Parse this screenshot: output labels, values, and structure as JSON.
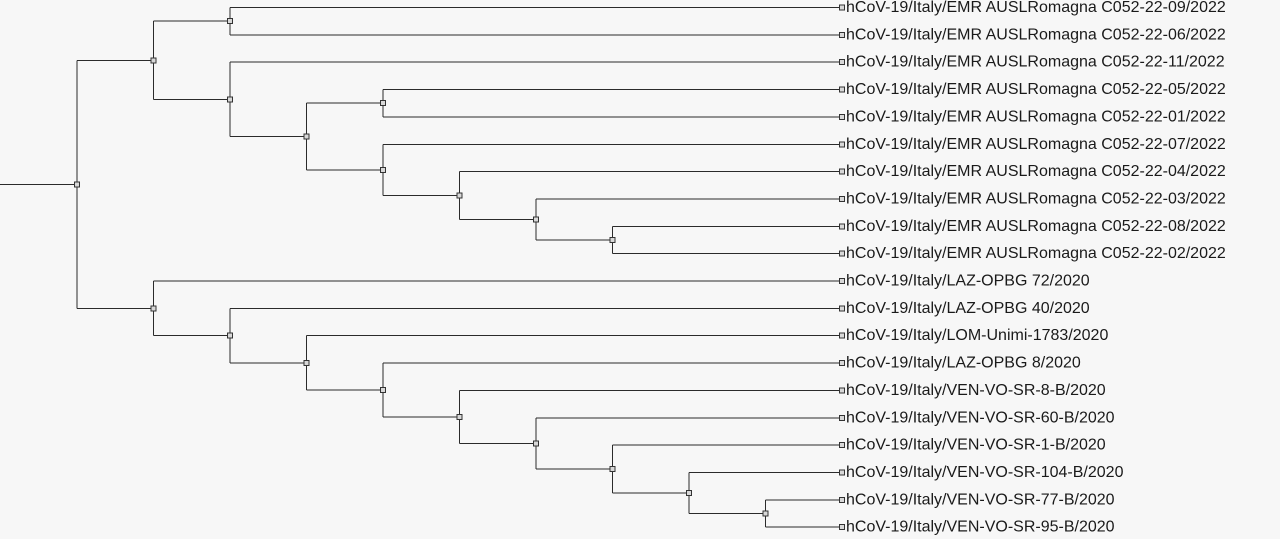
{
  "tree": {
    "colors": {
      "branch": "#2b2b2b",
      "node_fill": "#d8d8d8",
      "label": "#1a1a1a",
      "background": "#f7f7f7"
    },
    "leaves": [
      "hCoV-19/Italy/EMR AUSLRomagna C052-22-09/2022",
      "hCoV-19/Italy/EMR AUSLRomagna C052-22-06/2022",
      "hCoV-19/Italy/EMR AUSLRomagna C052-22-11/2022",
      "hCoV-19/Italy/EMR AUSLRomagna C052-22-05/2022",
      "hCoV-19/Italy/EMR AUSLRomagna C052-22-01/2022",
      "hCoV-19/Italy/EMR AUSLRomagna C052-22-07/2022",
      "hCoV-19/Italy/EMR AUSLRomagna C052-22-04/2022",
      "hCoV-19/Italy/EMR AUSLRomagna C052-22-03/2022",
      "hCoV-19/Italy/EMR AUSLRomagna C052-22-08/2022",
      "hCoV-19/Italy/EMR AUSLRomagna C052-22-02/2022",
      "hCoV-19/Italy/LAZ-OPBG 72/2020",
      "hCoV-19/Italy/LAZ-OPBG 40/2020",
      "hCoV-19/Italy/LOM-Unimi-1783/2020",
      "hCoV-19/Italy/LAZ-OPBG 8/2020",
      "hCoV-19/Italy/VEN-VO-SR-8-B/2020",
      "hCoV-19/Italy/VEN-VO-SR-60-B/2020",
      "hCoV-19/Italy/VEN-VO-SR-1-B/2020",
      "hCoV-19/Italy/VEN-VO-SR-104-B/2020",
      "hCoV-19/Italy/VEN-VO-SR-77-B/2020",
      "hCoV-19/Italy/VEN-VO-SR-95-B/2020"
    ],
    "topology": [
      [
        [
          0,
          1
        ],
        [
          2,
          [
            [
              3,
              4
            ],
            [
              5,
              [
                6,
                [
                  7,
                  [
                    8,
                    9
                  ]
                ]
              ]
            ]
          ]
        ]
      ],
      [
        10,
        [
          11,
          [
            12,
            [
              13,
              [
                14,
                [
                  15,
                  [
                    16,
                    [
                      17,
                      [
                        18,
                        19
                      ]
                    ]
                  ]
                ]
              ]
            ]
          ]
        ]
      ]
    ]
  }
}
